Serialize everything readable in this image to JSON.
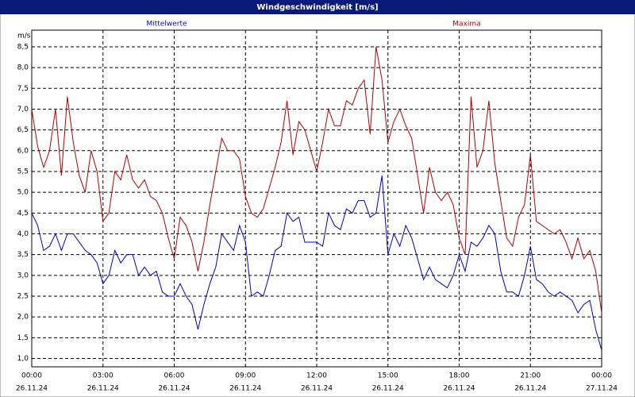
{
  "chart_data": {
    "type": "line",
    "title": "Windgeschwindigkeit [m/s]",
    "y_label": "m/s",
    "x": [
      0,
      0.25,
      0.5,
      0.75,
      1,
      1.25,
      1.5,
      1.75,
      2,
      2.25,
      2.5,
      2.75,
      3,
      3.25,
      3.5,
      3.75,
      4,
      4.25,
      4.5,
      4.75,
      5,
      5.25,
      5.5,
      5.75,
      6,
      6.25,
      6.5,
      6.75,
      7,
      7.25,
      7.5,
      7.75,
      8,
      8.25,
      8.5,
      8.75,
      9,
      9.25,
      9.5,
      9.75,
      10,
      10.25,
      10.5,
      10.75,
      11,
      11.25,
      11.5,
      11.75,
      12,
      12.25,
      12.5,
      12.75,
      13,
      13.25,
      13.5,
      13.75,
      14,
      14.25,
      14.5,
      14.75,
      15,
      15.25,
      15.5,
      15.75,
      16,
      16.25,
      16.5,
      16.75,
      17,
      17.25,
      17.5,
      17.75,
      18,
      18.25,
      18.5,
      18.75,
      19,
      19.25,
      19.5,
      19.75,
      20,
      20.25,
      20.5,
      20.75,
      21,
      21.25,
      21.5,
      21.75,
      22,
      22.25,
      22.5,
      22.75,
      23,
      23.25,
      23.5,
      23.75,
      24
    ],
    "series": [
      {
        "name": "Mittelwerte",
        "color": "#0000c0",
        "values": [
          4.5,
          4.2,
          3.6,
          3.7,
          4.0,
          3.6,
          4.0,
          4.0,
          3.8,
          3.6,
          3.5,
          3.3,
          2.8,
          3.0,
          3.6,
          3.3,
          3.5,
          3.5,
          3.0,
          3.2,
          3.0,
          3.1,
          2.6,
          2.5,
          2.5,
          2.8,
          2.5,
          2.3,
          1.7,
          2.3,
          2.8,
          3.2,
          4.0,
          3.8,
          3.6,
          4.2,
          3.8,
          2.5,
          2.6,
          2.5,
          3.0,
          3.6,
          3.7,
          4.5,
          4.3,
          4.4,
          3.8,
          3.8,
          3.8,
          3.7,
          4.5,
          4.2,
          4.1,
          4.6,
          4.5,
          4.8,
          4.8,
          4.4,
          4.5,
          5.4,
          3.5,
          4.0,
          3.7,
          4.2,
          3.9,
          3.4,
          2.9,
          3.2,
          2.9,
          2.8,
          2.7,
          3.0,
          3.5,
          3.1,
          3.8,
          3.7,
          3.9,
          4.2,
          4.0,
          3.1,
          2.6,
          2.6,
          2.5,
          3.0,
          3.7,
          2.9,
          2.8,
          2.6,
          2.5,
          2.6,
          2.5,
          2.4,
          2.1,
          2.3,
          2.4,
          1.7,
          1.2
        ]
      },
      {
        "name": "Maxima",
        "color": "#b00000",
        "values": [
          7.0,
          6.1,
          5.6,
          6.0,
          7.0,
          5.4,
          7.3,
          6.2,
          5.4,
          5.0,
          6.0,
          5.5,
          4.3,
          4.5,
          5.5,
          5.3,
          5.9,
          5.3,
          5.1,
          5.3,
          4.9,
          4.8,
          4.5,
          3.9,
          3.4,
          4.4,
          4.2,
          3.8,
          3.1,
          3.8,
          4.7,
          5.5,
          6.3,
          6.0,
          6.0,
          5.8,
          4.9,
          4.5,
          4.4,
          4.6,
          5.1,
          5.6,
          6.2,
          7.2,
          5.9,
          6.7,
          6.5,
          6.0,
          5.5,
          6.2,
          7.0,
          6.6,
          6.6,
          7.2,
          7.1,
          7.5,
          7.7,
          6.4,
          8.5,
          7.7,
          6.2,
          6.7,
          7.0,
          6.6,
          6.3,
          5.4,
          4.5,
          5.6,
          5.0,
          4.8,
          5.0,
          4.7,
          3.9,
          3.5,
          7.3,
          5.6,
          6.0,
          7.2,
          5.7,
          4.8,
          3.9,
          3.7,
          4.4,
          4.7,
          5.9,
          4.3,
          4.2,
          4.1,
          4.0,
          4.1,
          3.8,
          3.4,
          3.9,
          3.4,
          3.6,
          3.1,
          2.1
        ]
      }
    ],
    "xlim": [
      0,
      24
    ],
    "xticks": [
      {
        "value": 0,
        "label": "00:00"
      },
      {
        "value": 3,
        "label": "03:00"
      },
      {
        "value": 6,
        "label": "06:00"
      },
      {
        "value": 9,
        "label": "09:00"
      },
      {
        "value": 12,
        "label": "12:00"
      },
      {
        "value": 15,
        "label": "15:00"
      },
      {
        "value": 18,
        "label": "18:00"
      },
      {
        "value": 21,
        "label": "21:00"
      },
      {
        "value": 24,
        "label": "00:00"
      }
    ],
    "xtick_dates": [
      "26.11.24",
      "26.11.24",
      "26.11.24",
      "26.11.24",
      "26.11.24",
      "26.11.24",
      "26.11.24",
      "26.11.24",
      "27.11.24"
    ],
    "ylim": [
      0.8,
      8.9
    ],
    "yticks": [
      {
        "value": 1,
        "label": "1,0"
      },
      {
        "value": 1.5,
        "label": "1,5"
      },
      {
        "value": 2,
        "label": "2,0"
      },
      {
        "value": 2.5,
        "label": "2,5"
      },
      {
        "value": 3,
        "label": "3,0"
      },
      {
        "value": 3.5,
        "label": "3,5"
      },
      {
        "value": 4,
        "label": "4,0"
      },
      {
        "value": 4.5,
        "label": "4,5"
      },
      {
        "value": 5,
        "label": "5,0"
      },
      {
        "value": 5.5,
        "label": "5,5"
      },
      {
        "value": 6,
        "label": "6,0"
      },
      {
        "value": 6.5,
        "label": "6,5"
      },
      {
        "value": 7,
        "label": "7,0"
      },
      {
        "value": 7.5,
        "label": "7,5"
      },
      {
        "value": 8,
        "label": "8,0"
      },
      {
        "value": 8.5,
        "label": "8,5"
      }
    ],
    "grid": true
  }
}
